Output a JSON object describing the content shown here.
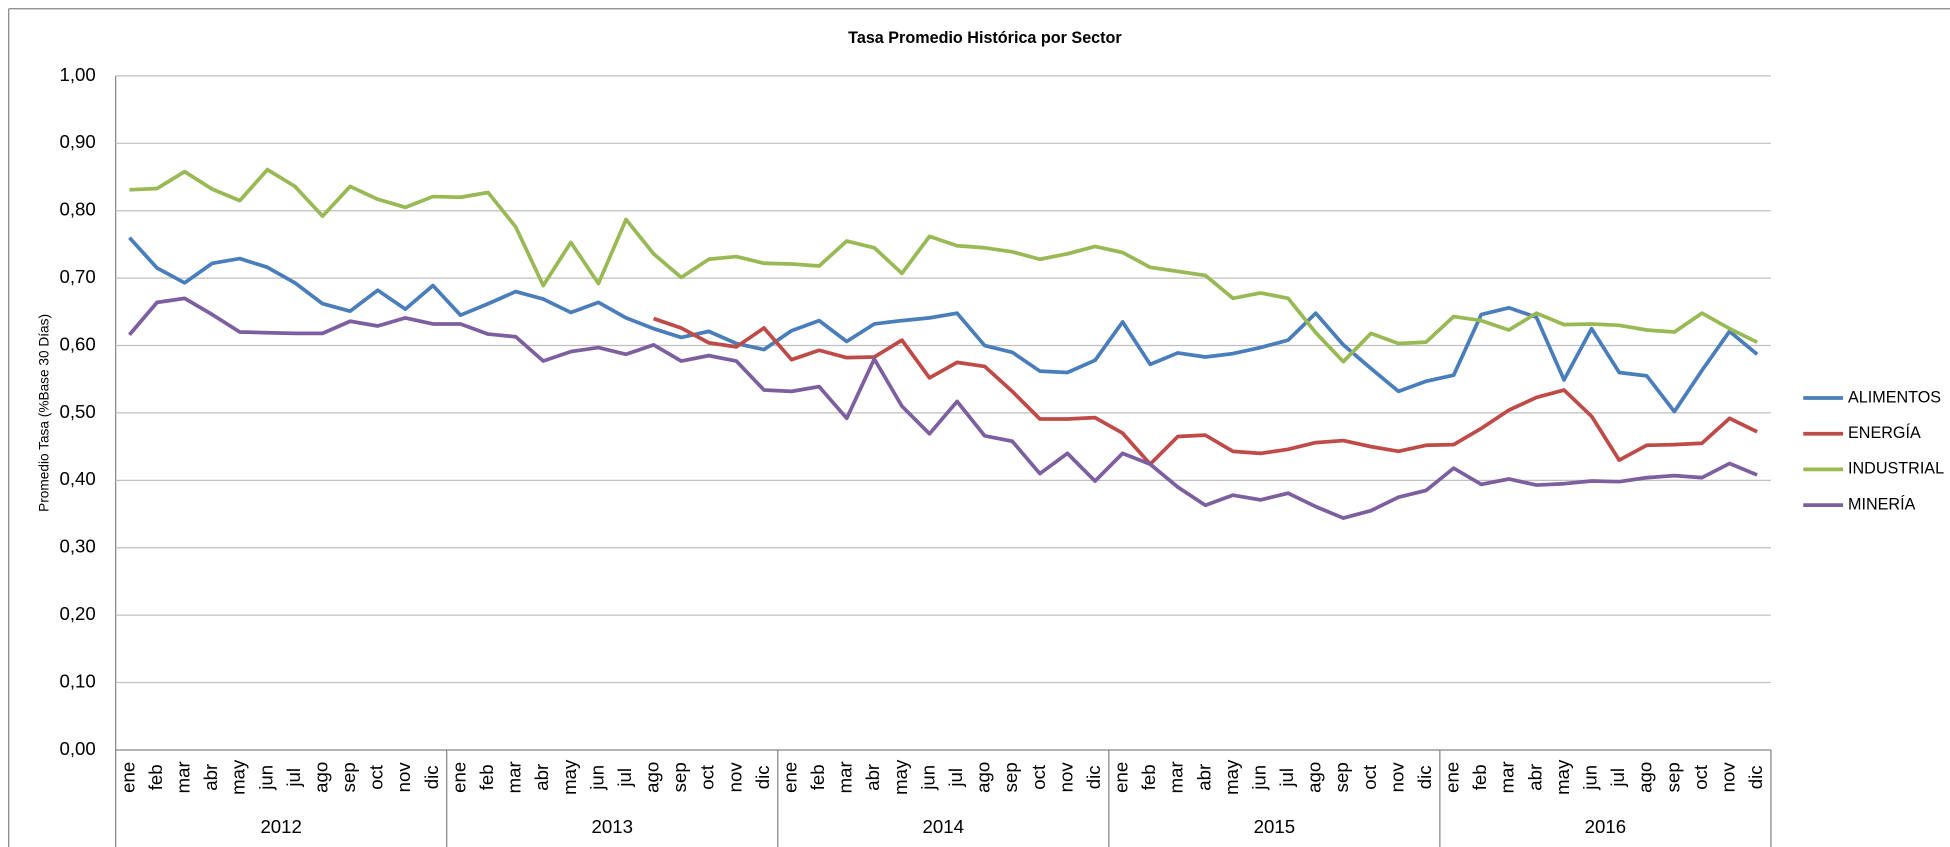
{
  "chart_data": {
    "type": "line",
    "title": "Tasa Promedio Histórica por Sector",
    "y_label": "Promedio Tasa (%Base 30 Días)",
    "categories": [
      "ene",
      "feb",
      "mar",
      "abr",
      "may",
      "jun",
      "jul",
      "ago",
      "sep",
      "oct",
      "nov",
      "dic",
      "ene",
      "feb",
      "mar",
      "abr",
      "may",
      "jun",
      "jul",
      "ago",
      "sep",
      "oct",
      "nov",
      "dic",
      "ene",
      "feb",
      "mar",
      "abr",
      "may",
      "jun",
      "jul",
      "ago",
      "sep",
      "oct",
      "nov",
      "dic",
      "ene",
      "feb",
      "mar",
      "abr",
      "may",
      "jun",
      "jul",
      "ago",
      "sep",
      "oct",
      "nov",
      "dic",
      "ene",
      "feb",
      "mar",
      "abr",
      "may",
      "jun",
      "jul",
      "ago",
      "sep",
      "oct",
      "nov",
      "dic"
    ],
    "category_groups": [
      "2012",
      "2013",
      "2014",
      "2015",
      "2016"
    ],
    "ylim": [
      0,
      1
    ],
    "yticks": [
      {
        "value": 0,
        "label": "0,00"
      },
      {
        "value": 0.1,
        "label": "0,10"
      },
      {
        "value": 0.2,
        "label": "0,20"
      },
      {
        "value": 0.3,
        "label": "0,30"
      },
      {
        "value": 0.4,
        "label": "0,40"
      },
      {
        "value": 0.5,
        "label": "0,50"
      },
      {
        "value": 0.6,
        "label": "0,60"
      },
      {
        "value": 0.7,
        "label": "0,70"
      },
      {
        "value": 0.8,
        "label": "0,80"
      },
      {
        "value": 0.9,
        "label": "0,90"
      },
      {
        "value": 1,
        "label": "1,00"
      }
    ],
    "grid": true,
    "legend": "right",
    "series": [
      {
        "name": "ALIMENTOS",
        "color": "#4a7ebb",
        "values": [
          0.76,
          0.715,
          0.693,
          0.722,
          0.729,
          0.716,
          0.693,
          0.662,
          0.651,
          0.682,
          0.654,
          0.689,
          0.645,
          0.662,
          0.68,
          0.669,
          0.649,
          0.664,
          0.641,
          0.625,
          0.612,
          0.621,
          0.603,
          0.594,
          0.622,
          0.637,
          0.606,
          0.632,
          0.637,
          0.641,
          0.648,
          0.6,
          0.59,
          0.562,
          0.56,
          0.578,
          0.635,
          0.572,
          0.589,
          0.583,
          0.588,
          0.597,
          0.608,
          0.648,
          0.601,
          0.566,
          0.532,
          0.547,
          0.556,
          0.646,
          0.656,
          0.642,
          0.549,
          0.625,
          0.56,
          0.555,
          0.502,
          0.563,
          0.621,
          0.587
        ]
      },
      {
        "name": "ENERGÍA",
        "color": "#be4b48",
        "values": [
          null,
          null,
          null,
          null,
          null,
          null,
          null,
          null,
          null,
          null,
          null,
          null,
          null,
          null,
          null,
          null,
          null,
          null,
          null,
          0.64,
          0.626,
          0.604,
          0.598,
          0.626,
          0.579,
          0.593,
          0.582,
          0.583,
          0.608,
          0.552,
          0.575,
          0.569,
          0.532,
          0.491,
          0.491,
          0.493,
          0.47,
          0.424,
          0.465,
          0.467,
          0.443,
          0.44,
          0.446,
          0.456,
          0.459,
          0.45,
          0.443,
          0.452,
          0.453,
          0.477,
          0.504,
          0.523,
          0.534,
          0.495,
          0.43,
          0.452,
          0.453,
          0.455,
          0.492,
          0.472
        ]
      },
      {
        "name": "INDUSTRIAL",
        "color": "#98b954",
        "values": [
          0.831,
          0.833,
          0.858,
          0.832,
          0.815,
          0.861,
          0.836,
          0.792,
          0.836,
          0.817,
          0.805,
          0.821,
          0.82,
          0.827,
          0.776,
          0.689,
          0.753,
          0.692,
          0.787,
          0.736,
          0.701,
          0.728,
          0.732,
          0.722,
          0.721,
          0.718,
          0.755,
          0.745,
          0.707,
          0.762,
          0.748,
          0.745,
          0.739,
          0.728,
          0.736,
          0.747,
          0.738,
          0.716,
          0.71,
          0.704,
          0.67,
          0.678,
          0.67,
          0.619,
          0.576,
          0.618,
          0.603,
          0.605,
          0.643,
          0.637,
          0.623,
          0.648,
          0.631,
          0.632,
          0.63,
          0.623,
          0.62,
          0.648,
          0.625,
          0.605
        ]
      },
      {
        "name": "MINERÍA",
        "color": "#7d5fa0",
        "values": [
          0.616,
          0.664,
          0.67,
          0.646,
          0.62,
          0.619,
          0.618,
          0.618,
          0.636,
          0.629,
          0.641,
          0.632,
          0.632,
          0.617,
          0.613,
          0.577,
          0.591,
          0.597,
          0.587,
          0.601,
          0.577,
          0.585,
          0.577,
          0.534,
          0.532,
          0.539,
          0.492,
          0.58,
          0.51,
          0.469,
          0.517,
          0.466,
          0.458,
          0.41,
          0.44,
          0.399,
          0.44,
          0.424,
          0.39,
          0.363,
          0.378,
          0.371,
          0.381,
          0.361,
          0.344,
          0.355,
          0.375,
          0.385,
          0.418,
          0.394,
          0.402,
          0.393,
          0.395,
          0.399,
          0.398,
          0.404,
          0.407,
          0.404,
          0.425,
          0.408
        ]
      }
    ]
  }
}
